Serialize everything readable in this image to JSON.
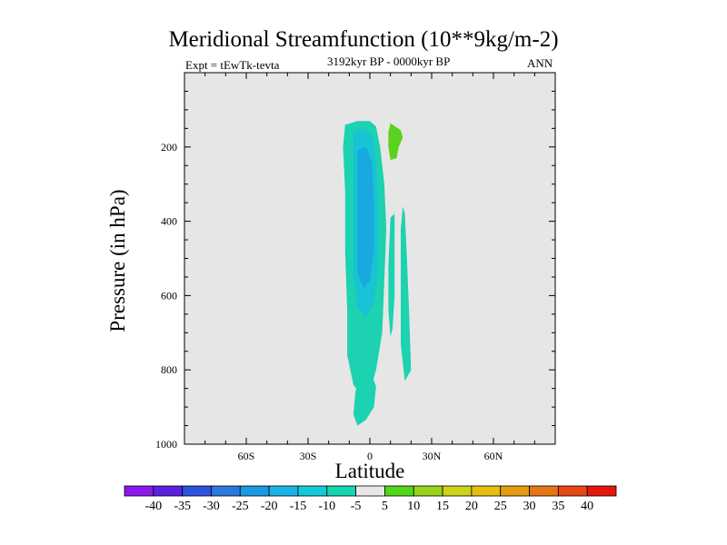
{
  "chart_data": {
    "type": "contour",
    "title": "Meridional Streamfunction (10**9kg/m-2)",
    "subtitle_left": "Expt = tEwTk-tevta",
    "subtitle_center": "3192kyr BP - 0000kyr BP",
    "subtitle_right": "ANN",
    "xlabel": "Latitude",
    "ylabel": "Pressure (in hPa)",
    "xlim": [
      -90,
      90
    ],
    "ylim": [
      1000,
      0
    ],
    "xticks": [
      {
        "value": -60,
        "label": "60S"
      },
      {
        "value": -30,
        "label": "30S"
      },
      {
        "value": 0,
        "label": "0"
      },
      {
        "value": 30,
        "label": "30N"
      },
      {
        "value": 60,
        "label": "60N"
      }
    ],
    "yticks": [
      {
        "value": 200,
        "label": "200"
      },
      {
        "value": 400,
        "label": "400"
      },
      {
        "value": 600,
        "label": "600"
      },
      {
        "value": 800,
        "label": "800"
      },
      {
        "value": 1000,
        "label": "1000"
      }
    ],
    "background_color": "#e6e6e6",
    "colorbar": {
      "levels": [
        "-40",
        "-35",
        "-30",
        "-25",
        "-20",
        "-15",
        "-10",
        "-5",
        "5",
        "10",
        "15",
        "20",
        "25",
        "30",
        "35",
        "40"
      ],
      "colors": [
        "#8a19ec",
        "#5a22e0",
        "#2b53de",
        "#2b78e0",
        "#1b98e2",
        "#1bb2e4",
        "#17c8d8",
        "#14d6b0",
        "#e8e8e8",
        "#52d61a",
        "#9ad21e",
        "#cdd21a",
        "#e6be10",
        "#e69c10",
        "#e67418",
        "#e64818",
        "#e2180e"
      ]
    },
    "regions": [
      {
        "name": "outer -5 band",
        "level": "-10 to -5",
        "color": "#1cd2b0",
        "points": [
          [
            -12,
            140
          ],
          [
            -6,
            130
          ],
          [
            0,
            130
          ],
          [
            3,
            145
          ],
          [
            5,
            200
          ],
          [
            7,
            300
          ],
          [
            8,
            420
          ],
          [
            7,
            560
          ],
          [
            6,
            700
          ],
          [
            3,
            800
          ],
          [
            0,
            860
          ],
          [
            -3,
            880
          ],
          [
            -8,
            840
          ],
          [
            -11,
            760
          ],
          [
            -11,
            640
          ],
          [
            -12,
            480
          ],
          [
            -12,
            320
          ],
          [
            -13,
            200
          ]
        ]
      },
      {
        "name": "-10 contour",
        "level": "-15 to -10",
        "color": "#17c3d4",
        "points": [
          [
            -8,
            160
          ],
          [
            -3,
            150
          ],
          [
            1,
            170
          ],
          [
            3,
            250
          ],
          [
            4,
            380
          ],
          [
            4,
            520
          ],
          [
            2,
            620
          ],
          [
            -2,
            660
          ],
          [
            -6,
            630
          ],
          [
            -8,
            540
          ],
          [
            -8,
            400
          ],
          [
            -8,
            260
          ]
        ]
      },
      {
        "name": "-15 core",
        "level": "-20 to -15",
        "color": "#19a8e0",
        "points": [
          [
            -6,
            210
          ],
          [
            -2,
            200
          ],
          [
            1,
            240
          ],
          [
            2,
            360
          ],
          [
            2,
            480
          ],
          [
            0,
            560
          ],
          [
            -3,
            580
          ],
          [
            -6,
            540
          ],
          [
            -6,
            420
          ],
          [
            -6,
            300
          ]
        ]
      },
      {
        "name": "lower -5 patch",
        "level": "-10 to -5",
        "color": "#1cd2b0",
        "points": [
          [
            -5,
            815
          ],
          [
            1,
            815
          ],
          [
            3,
            845
          ],
          [
            2,
            900
          ],
          [
            -2,
            935
          ],
          [
            -6,
            950
          ],
          [
            -8,
            920
          ],
          [
            -7,
            860
          ]
        ]
      },
      {
        "name": "green patch",
        "level": "5 to 10",
        "color": "#5ad21e",
        "points": [
          [
            10,
            136
          ],
          [
            15,
            155
          ],
          [
            16,
            175
          ],
          [
            14,
            200
          ],
          [
            13,
            230
          ],
          [
            10,
            235
          ],
          [
            9,
            200
          ],
          [
            9,
            160
          ]
        ]
      },
      {
        "name": "thin NH sliver",
        "level": "-10 to -5",
        "color": "#1cd2b0",
        "points": [
          [
            10,
            390
          ],
          [
            12,
            380
          ],
          [
            12,
            480
          ],
          [
            12,
            600
          ],
          [
            11,
            690
          ],
          [
            10,
            710
          ],
          [
            9,
            640
          ],
          [
            9,
            520
          ]
        ]
      },
      {
        "name": "thin NH sliver 2",
        "level": "-10 to -5",
        "color": "#1cd2b0",
        "points": [
          [
            16,
            360
          ],
          [
            17,
            380
          ],
          [
            18,
            500
          ],
          [
            19,
            640
          ],
          [
            20,
            800
          ],
          [
            17,
            830
          ],
          [
            15,
            730
          ],
          [
            15,
            560
          ],
          [
            15,
            420
          ]
        ]
      }
    ]
  }
}
